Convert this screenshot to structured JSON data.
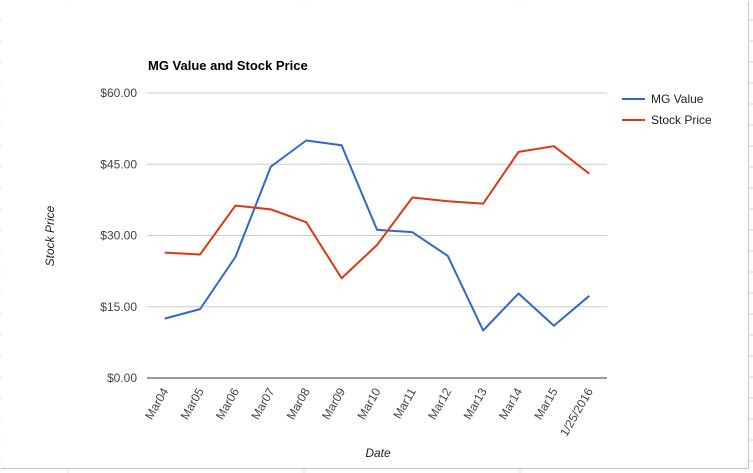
{
  "chart_data": {
    "type": "line",
    "title": "MG Value and Stock Price",
    "xlabel": "Date",
    "ylabel": "Stock Price",
    "categories": [
      "Mar04",
      "Mar05",
      "Mar06",
      "Mar07",
      "Mar08",
      "Mar09",
      "Mar10",
      "Mar11",
      "Mar12",
      "Mar13",
      "Mar14",
      "Mar15",
      "1/25/2016"
    ],
    "ylim": [
      0,
      60
    ],
    "yticks": [
      0,
      15,
      30,
      45,
      60
    ],
    "ytick_labels": [
      "$0.00",
      "$15.00",
      "$30.00",
      "$45.00",
      "$60.00"
    ],
    "grid": true,
    "legend": "right",
    "series": [
      {
        "name": "MG Value",
        "color": "#3366cc",
        "values": [
          12.5,
          14.5,
          25.5,
          44.5,
          50.0,
          49.0,
          31.2,
          30.7,
          25.7,
          10.0,
          17.8,
          11.0,
          17.3
        ]
      },
      {
        "name": "Stock Price",
        "color": "#dc3912",
        "values": [
          26.4,
          26.0,
          36.3,
          35.5,
          32.8,
          21.0,
          28.0,
          38.0,
          37.2,
          36.7,
          47.6,
          48.8,
          43.0
        ]
      }
    ]
  }
}
